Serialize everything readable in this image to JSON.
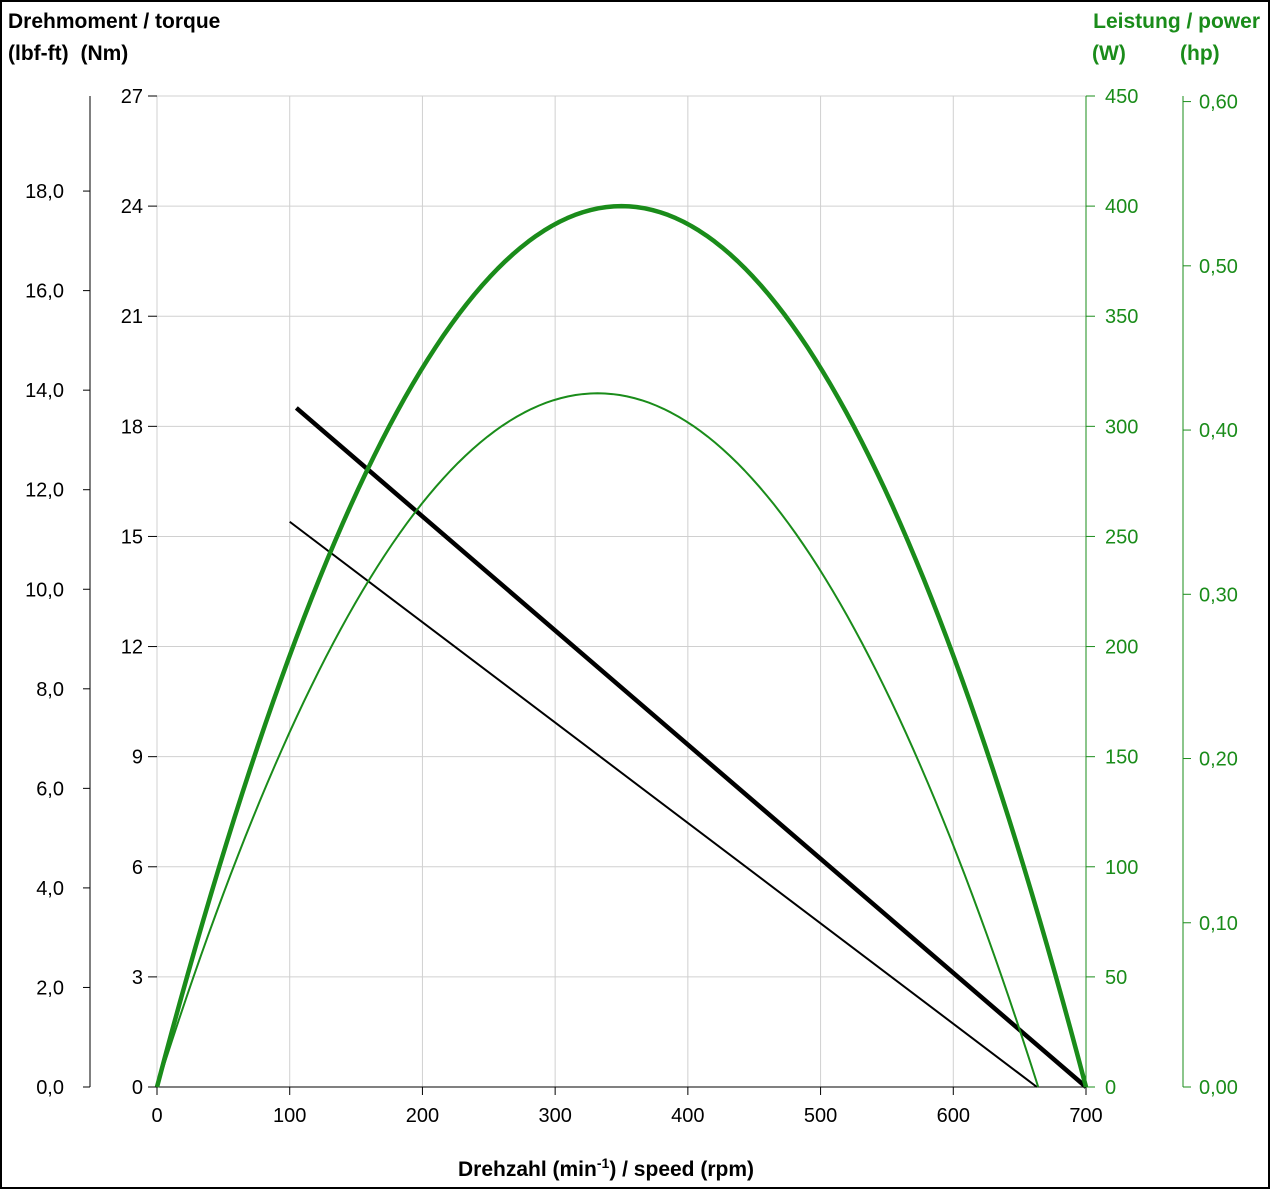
{
  "torque_title": {
    "line1": "Drehmoment / torque",
    "unit_lbfft": "(lbf-ft)",
    "unit_nm": "(Nm)"
  },
  "power_title": {
    "line1": "Leistung / power",
    "unit_w": "(W)",
    "unit_hp": "(hp)"
  },
  "x_title": {
    "pre": "Drehzahl (min",
    "sup": "-1",
    "post": ") / speed (rpm)"
  },
  "colors": {
    "torque": "#000000",
    "power": "#1a8c1a",
    "grid": "#d0d0d0"
  },
  "chart_data": {
    "type": "line",
    "xlabel": "Drehzahl (min-1) / speed (rpm)",
    "xlim": [
      0,
      700
    ],
    "x_ticks": [
      "0",
      "100",
      "200",
      "300",
      "400",
      "500",
      "600",
      "700"
    ],
    "axes": {
      "lbfft": {
        "label": "Drehmoment / torque (lbf-ft)",
        "lim": [
          0,
          19.91
        ],
        "ticks": [
          "0,0",
          "2,0",
          "4,0",
          "6,0",
          "8,0",
          "10,0",
          "12,0",
          "14,0",
          "16,0",
          "18,0"
        ],
        "tick_values": [
          0,
          2,
          4,
          6,
          8,
          10,
          12,
          14,
          16,
          18
        ]
      },
      "nm": {
        "label": "Drehmoment / torque (Nm)",
        "lim": [
          0,
          27
        ],
        "ticks": [
          "0",
          "3",
          "6",
          "9",
          "12",
          "15",
          "18",
          "21",
          "24",
          "27"
        ],
        "tick_values": [
          0,
          3,
          6,
          9,
          12,
          15,
          18,
          21,
          24,
          27
        ]
      },
      "w": {
        "label": "Leistung / power (W)",
        "lim": [
          0,
          450
        ],
        "ticks": [
          "0",
          "50",
          "100",
          "150",
          "200",
          "250",
          "300",
          "350",
          "400",
          "450"
        ],
        "tick_values": [
          0,
          50,
          100,
          150,
          200,
          250,
          300,
          350,
          400,
          450
        ]
      },
      "hp": {
        "label": "Leistung / power (hp)",
        "lim": [
          0,
          0.6034
        ],
        "ticks": [
          "0,00",
          "0,10",
          "0,20",
          "0,30",
          "0,40",
          "0,50",
          "0,60"
        ],
        "tick_values": [
          0,
          0.1,
          0.2,
          0.3,
          0.4,
          0.5,
          0.6
        ]
      }
    },
    "grid": true,
    "series": [
      {
        "style": "thick",
        "kind": "torque",
        "axis": "nm",
        "x": [
          105,
          700
        ],
        "y": [
          18.5,
          0
        ]
      },
      {
        "style": "thin",
        "kind": "torque",
        "axis": "nm",
        "x": [
          100,
          663
        ],
        "y": [
          15.4,
          0
        ]
      },
      {
        "style": "thick",
        "kind": "power",
        "axis": "w",
        "peak_x": 350,
        "peak_y": 400,
        "x": [
          0,
          50,
          100,
          150,
          200,
          250,
          300,
          350,
          400,
          450,
          500,
          550,
          600,
          650,
          700
        ],
        "y": [
          0,
          106,
          204,
          294,
          327,
          367,
          392,
          400,
          392,
          367,
          327,
          271,
          204,
          114,
          0
        ]
      },
      {
        "style": "thin",
        "kind": "power",
        "axis": "w",
        "peak_x": 332,
        "peak_y": 315,
        "x": [
          0,
          332,
          663
        ],
        "y": [
          0,
          315,
          0
        ]
      }
    ]
  }
}
